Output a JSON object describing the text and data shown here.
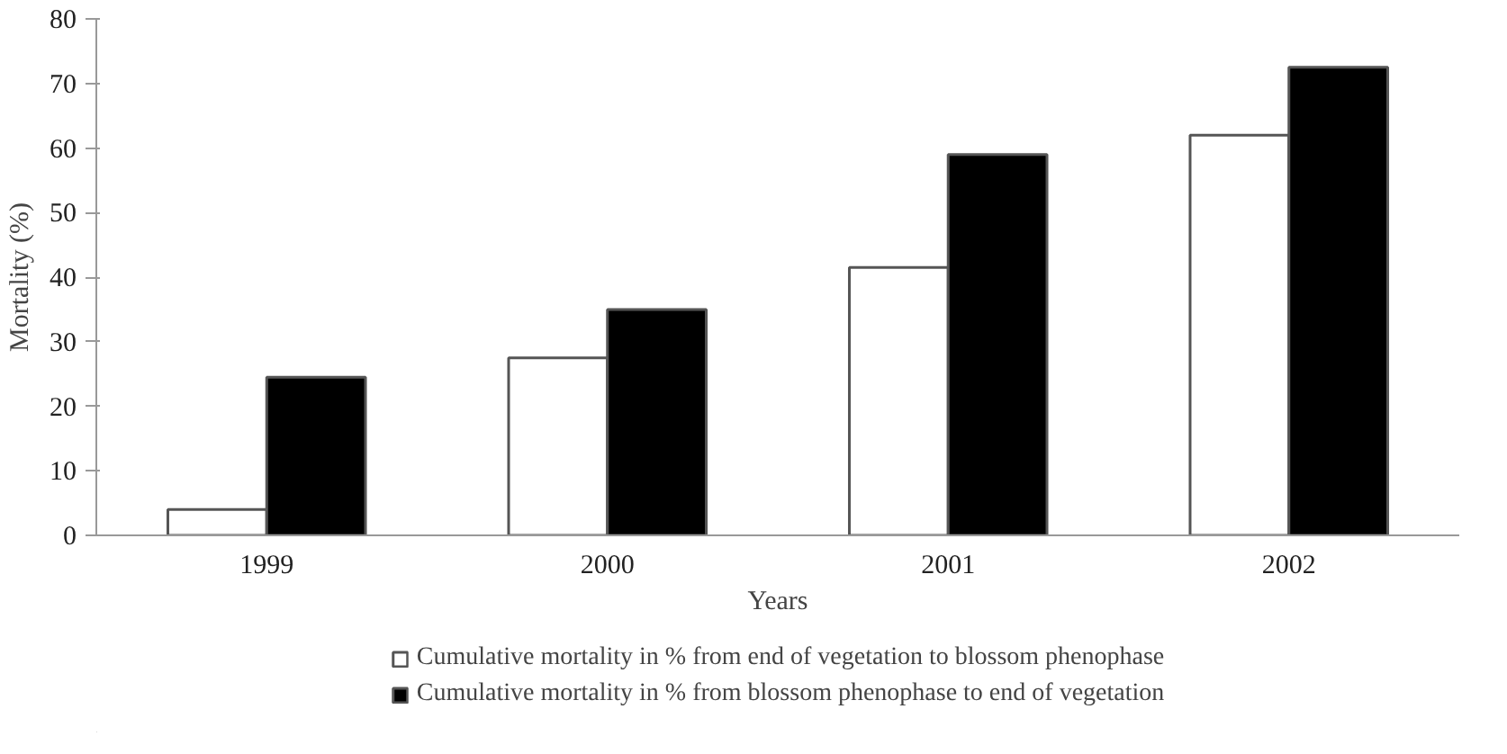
{
  "chart_data": {
    "type": "bar",
    "xlabel": "Years",
    "ylabel": "Mortality (%)",
    "categories": [
      "1999",
      "2000",
      "2001",
      "2002"
    ],
    "series": [
      {
        "name": "Cumulative mortality in % from end of vegetation to blossom phenophase",
        "color": "#ffffff",
        "values": [
          4,
          27.5,
          41.5,
          62
        ]
      },
      {
        "name": "Cumulative mortality in % from blossom phenophase to end of vegetation",
        "color": "#000000",
        "values": [
          24.5,
          35,
          59,
          72.5
        ]
      }
    ],
    "ylim": [
      0,
      80
    ],
    "yticks": [
      0,
      10,
      20,
      30,
      40,
      50,
      60,
      70,
      80
    ],
    "grid": false,
    "legend": "bottom"
  }
}
